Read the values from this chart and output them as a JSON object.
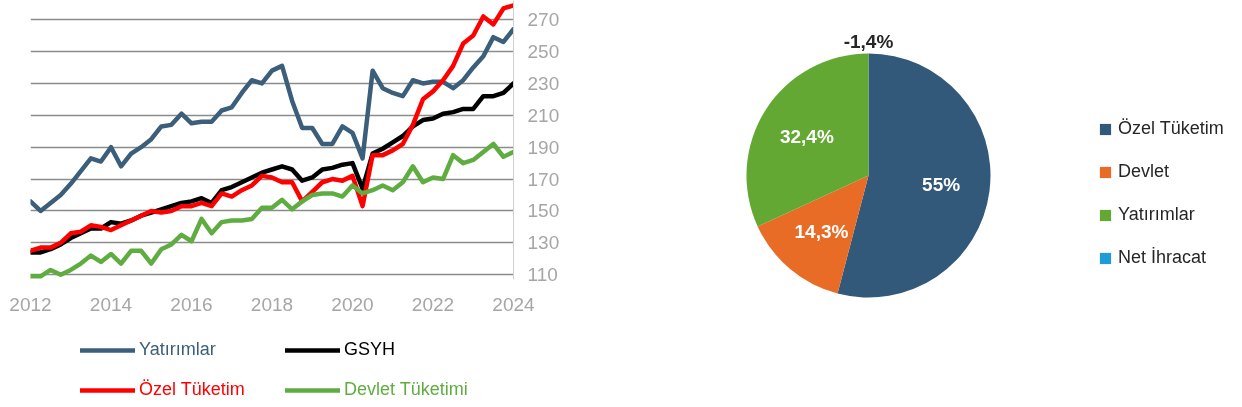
{
  "chart_data": [
    {
      "type": "line",
      "x": [
        2012,
        2012.25,
        2012.5,
        2012.75,
        2013,
        2013.25,
        2013.5,
        2013.75,
        2014,
        2014.25,
        2014.5,
        2014.75,
        2015,
        2015.25,
        2015.5,
        2015.75,
        2016,
        2016.25,
        2016.5,
        2016.75,
        2017,
        2017.25,
        2017.5,
        2017.75,
        2018,
        2018.25,
        2018.5,
        2018.75,
        2019,
        2019.25,
        2019.5,
        2019.75,
        2020,
        2020.25,
        2020.5,
        2020.75,
        2021,
        2021.25,
        2021.5,
        2021.75,
        2022,
        2022.25,
        2022.5,
        2022.75,
        2023,
        2023.25,
        2023.5,
        2023.75,
        2024
      ],
      "series": [
        {
          "name": "Yatırımlar",
          "color": "#3b5e7a",
          "values": [
            156,
            150,
            155,
            160,
            167,
            175,
            183,
            181,
            190,
            178,
            186,
            190,
            195,
            203,
            204,
            211,
            205,
            206,
            206,
            213,
            215,
            224,
            232,
            230,
            238,
            241,
            219,
            202,
            202,
            192,
            192,
            203,
            199,
            183,
            238,
            227,
            224,
            222,
            232,
            230,
            231,
            231,
            227,
            232,
            240,
            247,
            259,
            256,
            264
          ]
        },
        {
          "name": "GSYH",
          "color": "#000000",
          "values": [
            124,
            124,
            126,
            129,
            133,
            136,
            139,
            139,
            143,
            142,
            144,
            147,
            149,
            151,
            153,
            155,
            156,
            158,
            155,
            163,
            165,
            168,
            171,
            174,
            176,
            178,
            176,
            169,
            171,
            176,
            177,
            179,
            180,
            164,
            186,
            189,
            193,
            197,
            203,
            207,
            208,
            211,
            212,
            214,
            214,
            222,
            222,
            224,
            230
          ]
        },
        {
          "name": "Özel Tüketim",
          "color": "#ff0000",
          "values": [
            125,
            127,
            127,
            130,
            136,
            137,
            141,
            140,
            138,
            141,
            144,
            147,
            150,
            149,
            150,
            153,
            153,
            155,
            153,
            161,
            159,
            163,
            166,
            172,
            171,
            168,
            168,
            156,
            162,
            168,
            170,
            169,
            172,
            153,
            185,
            185,
            188,
            192,
            204,
            220,
            225,
            232,
            241,
            255,
            260,
            272,
            267,
            277,
            279
          ]
        },
        {
          "name": "Devlet Tüketimi",
          "color": "#5fad41",
          "values": [
            109,
            109,
            113,
            110,
            113,
            117,
            122,
            118,
            123,
            117,
            125,
            125,
            117,
            126,
            129,
            135,
            131,
            145,
            136,
            143,
            144,
            144,
            145,
            152,
            152,
            157,
            151,
            156,
            160,
            161,
            161,
            159,
            166,
            161,
            163,
            166,
            163,
            168,
            178,
            168,
            171,
            170,
            185,
            180,
            182,
            187,
            192,
            184,
            187
          ]
        }
      ],
      "xlim": [
        2012,
        2024
      ],
      "xticks": [
        2012,
        2014,
        2016,
        2018,
        2020,
        2022,
        2024
      ],
      "ylim": [
        107,
        282
      ],
      "yticks": [
        110,
        130,
        150,
        170,
        190,
        210,
        230,
        250,
        270
      ],
      "grid": "y",
      "legend": "bottom",
      "line_style": "solid"
    },
    {
      "type": "pie",
      "categories": [
        "Özel Tüketim",
        "Devlet",
        "Yatırımlar",
        "Net İhracat"
      ],
      "values": [
        55,
        14.3,
        32.4,
        null
      ],
      "colors": [
        "#33597a",
        "#e86b26",
        "#63a832",
        "#1e9cd7"
      ],
      "value_labels": [
        "55%",
        "14,3%",
        "32,4%",
        null
      ],
      "annotations": [
        "-1,4%"
      ],
      "legend": "right"
    }
  ]
}
